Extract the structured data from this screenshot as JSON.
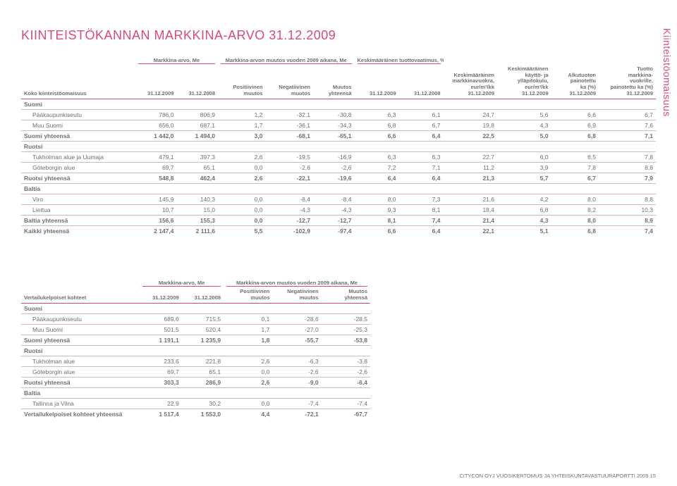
{
  "page": {
    "vertical_label": "Kiinteistöomaisuus",
    "title": "KIINTEISTÖKANNAN MARKKINA-ARVO 31.12.2009",
    "footer": "CITYCON OYJ VUOSIKERTOMUS JA YHTEISKUNTAVASTUURAPORTTI 2009  15"
  },
  "colors": {
    "accent": "#d94a7c",
    "text": "#706f6f",
    "row_border": "#d9b4c4",
    "background": "#ffffff"
  },
  "table1": {
    "super_headers": {
      "mv": "Markkina-arvo, Me",
      "change": "Markkina-arvon muutos\nvuoden 2009 aikana, Me",
      "yield": "Keskimääräinen\ntuottovaatimus, %"
    },
    "headers": {
      "c0": "Koko kiinteistöomaisuus",
      "c1": "31.12.2009",
      "c2": "31.12.2008",
      "c3": "Positiivinen\nmuutos",
      "c4": "Negatiivinen\nmuutos",
      "c5": "Muutos\nyhteensä",
      "c6": "31.12.2009",
      "c7": "31.12.2008",
      "c8": "Keskimääräinen\nmarkkinavuokra,\neur/m²/kk\n31.12.2009",
      "c9": "Keskimääräinen\nkäyttö- ja\nylläpitokulu,\neur/m²/kk\n31.12.2009",
      "c10": "Alkutuoton\npainotettu\nka (%)\n31.12.2009",
      "c11": "Tuotto\nmarkkina-\nvuokrille,\npainotettu ka (%)\n31.12.2009"
    },
    "rows": [
      {
        "type": "section",
        "label": "Suomi"
      },
      {
        "type": "indent",
        "label": "Pääkaupunkiseutu",
        "v": [
          "786,0",
          "806,9",
          "1,2",
          "-32,1",
          "-30,8",
          "6,3",
          "6,1",
          "24,7",
          "5,6",
          "6,6",
          "6,7"
        ]
      },
      {
        "type": "indent",
        "label": "Muu Suomi",
        "v": [
          "656,0",
          "687,1",
          "1,7",
          "-36,1",
          "-34,3",
          "6,8",
          "6,7",
          "19,8",
          "4,3",
          "6,9",
          "7,6"
        ]
      },
      {
        "type": "total",
        "label": "Suomi yhteensä",
        "v": [
          "1 442,0",
          "1 494,0",
          "3,0",
          "-68,1",
          "-65,1",
          "6,6",
          "6,4",
          "22,5",
          "5,0",
          "6,8",
          "7,1"
        ]
      },
      {
        "type": "section",
        "label": "Ruotsi"
      },
      {
        "type": "indent",
        "label": "Tukholman alue ja Uumaja",
        "v": [
          "479,1",
          "397,3",
          "2,6",
          "-19,5",
          "-16,9",
          "6,3",
          "6,3",
          "22,7",
          "6,0",
          "6,5",
          "7,8"
        ]
      },
      {
        "type": "indent",
        "label": "Göteborgin alue",
        "v": [
          "69,7",
          "65,1",
          "0,0",
          "-2,6",
          "-2,6",
          "7,2",
          "7,1",
          "11,2",
          "3,9",
          "7,8",
          "8,8"
        ]
      },
      {
        "type": "total",
        "label": "Ruotsi yhteensä",
        "v": [
          "548,8",
          "462,4",
          "2,6",
          "-22,1",
          "-19,6",
          "6,4",
          "6,4",
          "21,3",
          "5,7",
          "6,7",
          "7,9"
        ]
      },
      {
        "type": "section",
        "label": "Baltia"
      },
      {
        "type": "indent",
        "label": "Viro",
        "v": [
          "145,9",
          "140,3",
          "0,0",
          "-8,4",
          "-8,4",
          "8,0",
          "7,3",
          "21,6",
          "4,2",
          "8,0",
          "8,8"
        ]
      },
      {
        "type": "indent",
        "label": "Liettua",
        "v": [
          "10,7",
          "15,0",
          "0,0",
          "-4,3",
          "-4,3",
          "9,3",
          "8,1",
          "18,4",
          "6,8",
          "8,2",
          "10,3"
        ]
      },
      {
        "type": "total",
        "label": "Baltia yhteensä",
        "v": [
          "156,6",
          "155,3",
          "0,0",
          "-12,7",
          "-12,7",
          "8,1",
          "7,4",
          "21,4",
          "4,3",
          "8,0",
          "8,9"
        ]
      },
      {
        "type": "total",
        "label": "Kaikki yhteensä",
        "v": [
          "2 147,4",
          "2 111,6",
          "5,5",
          "-102,9",
          "-97,4",
          "6,6",
          "6,4",
          "22,1",
          "5,1",
          "6,8",
          "7,4"
        ]
      }
    ],
    "col_widths_pct": [
      18,
      6.5,
      6.5,
      7.5,
      7.5,
      6.5,
      7,
      7,
      8.5,
      8.5,
      7.5,
      9
    ]
  },
  "table2": {
    "super_headers": {
      "mv": "Markkina-arvo, Me",
      "change": "Markkina-arvon muutos\nvuoden 2009 aikana, Me"
    },
    "headers": {
      "c0": "Vertailukelpoiset kohteet",
      "c1": "31.12.2009",
      "c2": "31.12.2008",
      "c3": "Positiivinen\nmuutos",
      "c4": "Negatiivinen\nmuutos",
      "c5": "Muutos\nyhteensä"
    },
    "rows": [
      {
        "type": "section",
        "label": "Suomi"
      },
      {
        "type": "indent",
        "label": "Pääkaupunkiseutu",
        "v": [
          "689,6",
          "715,5",
          "0,1",
          "-28,6",
          "-28,5"
        ]
      },
      {
        "type": "indent",
        "label": "Muu Suomi",
        "v": [
          "501,5",
          "520,4",
          "1,7",
          "-27,0",
          "-25,3"
        ]
      },
      {
        "type": "total",
        "label": "Suomi yhteensä",
        "v": [
          "1 191,1",
          "1 235,9",
          "1,8",
          "-55,7",
          "-53,8"
        ]
      },
      {
        "type": "section",
        "label": "Ruotsi"
      },
      {
        "type": "indent",
        "label": "Tukholman alue",
        "v": [
          "233,6",
          "221,8",
          "2,6",
          "-6,3",
          "-3,8"
        ]
      },
      {
        "type": "indent",
        "label": "Göteborgin alue",
        "v": [
          "69,7",
          "65,1",
          "0,0",
          "-2,6",
          "-2,6"
        ]
      },
      {
        "type": "total",
        "label": "Ruotsi yhteensä",
        "v": [
          "303,3",
          "286,9",
          "2,6",
          "-9,0",
          "-6,4"
        ]
      },
      {
        "type": "section",
        "label": "Baltia"
      },
      {
        "type": "indent",
        "label": "Tallinna ja Vilna",
        "v": [
          "22,9",
          "30,2",
          "0,0",
          "-7,4",
          "-7,4"
        ]
      },
      {
        "type": "total",
        "label": "Vertailukelpoiset kohteet yhteensä",
        "v": [
          "1 517,4",
          "1 553,0",
          "4,4",
          "-72,1",
          "-67,7"
        ]
      }
    ],
    "col_widths_pct": [
      34,
      12,
      12,
      14,
      14,
      14
    ]
  }
}
